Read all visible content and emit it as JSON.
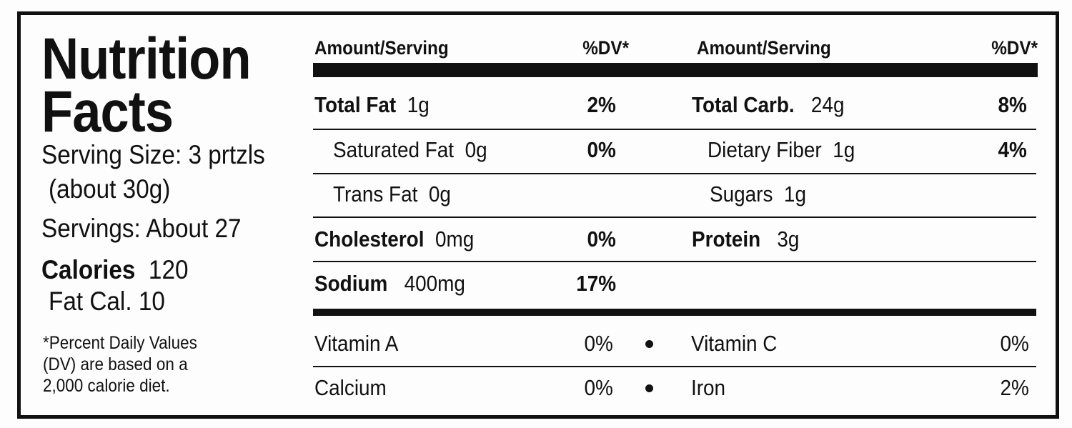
{
  "title": [
    "Nutrition",
    "Facts"
  ],
  "serving_size": "Serving Size: 3 prtzls",
  "serving_weight": "(about 30g)",
  "servings": "Servings: About 27",
  "calories": {
    "label": "Calories",
    "value": "120"
  },
  "fat_calories": "Fat Cal. 10",
  "footnote": [
    "*Percent Daily Values",
    "(DV) are based on a",
    "2,000 calorie diet."
  ],
  "header": [
    "Amount/Serving",
    "%DV*",
    "Amount/Serving",
    "%DV*"
  ],
  "left_rows": [
    {
      "name": "Total Fat",
      "amount": "1g",
      "dv": "2%"
    },
    {
      "name": "Saturated Fat",
      "amount": "0g",
      "dv": "0%"
    },
    {
      "name": "Trans Fat",
      "amount": "0g"
    },
    {
      "name": "Cholesterol",
      "amount": "0mg",
      "dv": "0%"
    },
    {
      "name": "Sodium",
      "amount": "400mg",
      "dv": "17%"
    }
  ],
  "right_rows": [
    {
      "name": "Total Carb.",
      "amount": "24g",
      "dv": "8%"
    },
    {
      "name": "Dietary Fiber",
      "amount": "1g",
      "dv": "4%"
    },
    {
      "name": "Sugars",
      "amount": "1g"
    },
    {
      "name": "Protein",
      "amount": "3g"
    }
  ],
  "vitamins": [
    [
      "Vitamin A",
      "0%",
      "Vitamin C",
      "0%"
    ],
    [
      "Calcium",
      "0%",
      "Iron",
      "2%"
    ]
  ]
}
